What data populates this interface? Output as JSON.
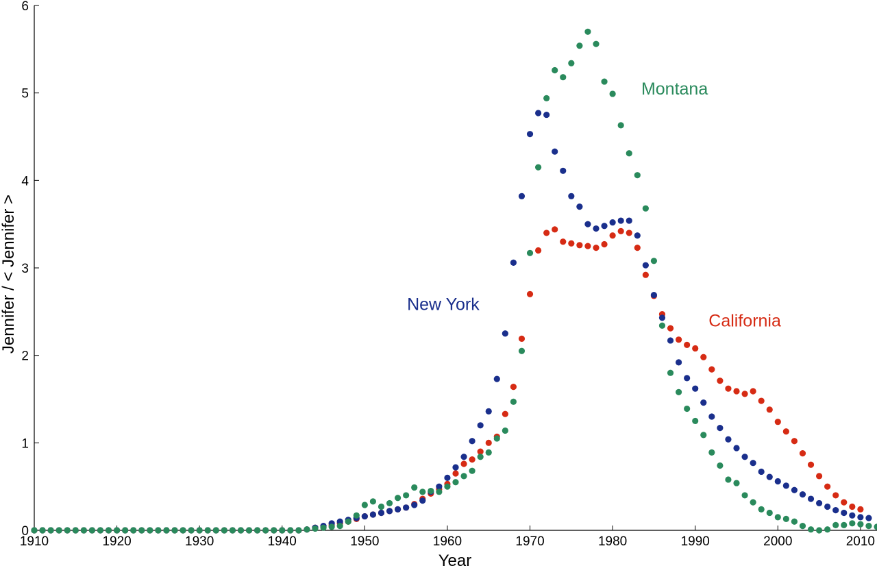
{
  "chart_data": {
    "type": "scatter",
    "title": "",
    "xlabel": "Year",
    "ylabel": "Jennifer / < Jennifer >",
    "xlim": [
      1910,
      2012
    ],
    "ylim": [
      0,
      6
    ],
    "xticks": [
      1910,
      1920,
      1930,
      1940,
      1950,
      1960,
      1970,
      1980,
      1990,
      2000,
      2010
    ],
    "xtick_labels": [
      "1910",
      "1920",
      "1930",
      "1940",
      "1950",
      "1960",
      "1970",
      "1980",
      "1990",
      "2000",
      "2010"
    ],
    "yticks": [
      0,
      1,
      2,
      3,
      4,
      5,
      6
    ],
    "ytick_labels": [
      "0",
      "1",
      "2",
      "3",
      "4",
      "5",
      "6"
    ],
    "grid": false,
    "legend": "none (series labeled inline)",
    "series": [
      {
        "name": "California",
        "color": "#d62b14",
        "x_start": 1910,
        "values": [
          0,
          0,
          0,
          0,
          0,
          0,
          0,
          0,
          0,
          0,
          0,
          0,
          0,
          0,
          0,
          0,
          0,
          0,
          0,
          0,
          0,
          0,
          0,
          0,
          0,
          0,
          0,
          0,
          0,
          0,
          0,
          0,
          0,
          0.01,
          0.03,
          0.04,
          0.06,
          0.08,
          0.1,
          0.13,
          0.16,
          0.18,
          0.2,
          0.22,
          0.24,
          0.26,
          0.3,
          0.36,
          0.42,
          0.47,
          0.53,
          0.65,
          0.76,
          0.81,
          0.9,
          1.0,
          1.07,
          1.33,
          1.64,
          2.19,
          2.7,
          3.2,
          3.4,
          3.44,
          3.3,
          3.28,
          3.26,
          3.25,
          3.23,
          3.27,
          3.37,
          3.42,
          3.4,
          3.23,
          2.92,
          2.68,
          2.47,
          2.31,
          2.18,
          2.12,
          2.08,
          1.98,
          1.84,
          1.71,
          1.62,
          1.59,
          1.56,
          1.59,
          1.48,
          1.38,
          1.24,
          1.13,
          1.02,
          0.88,
          0.75,
          0.62,
          0.5,
          0.4,
          0.32,
          0.27,
          0.24
        ]
      },
      {
        "name": "New York",
        "color": "#1a2f8c",
        "x_start": 1910,
        "values": [
          0,
          0,
          0,
          0,
          0,
          0,
          0,
          0,
          0,
          0,
          0,
          0,
          0,
          0,
          0,
          0,
          0,
          0,
          0,
          0,
          0,
          0,
          0,
          0,
          0,
          0,
          0,
          0,
          0,
          0,
          0,
          0,
          0,
          0.01,
          0.03,
          0.05,
          0.08,
          0.1,
          0.12,
          0.14,
          0.16,
          0.18,
          0.2,
          0.22,
          0.24,
          0.26,
          0.29,
          0.34,
          0.44,
          0.5,
          0.6,
          0.72,
          0.84,
          1.02,
          1.2,
          1.36,
          1.73,
          2.25,
          3.06,
          3.82,
          4.53,
          4.77,
          4.75,
          4.33,
          4.11,
          3.82,
          3.7,
          3.5,
          3.45,
          3.48,
          3.52,
          3.54,
          3.54,
          3.37,
          3.03,
          2.69,
          2.43,
          2.17,
          1.92,
          1.74,
          1.62,
          1.46,
          1.3,
          1.17,
          1.04,
          0.94,
          0.84,
          0.77,
          0.67,
          0.61,
          0.56,
          0.51,
          0.46,
          0.41,
          0.36,
          0.31,
          0.27,
          0.23,
          0.2,
          0.17,
          0.15,
          0.14
        ]
      },
      {
        "name": "Montana",
        "color": "#2a8a5c",
        "x_start": 1910,
        "values": [
          0,
          0,
          0,
          0,
          0,
          0,
          0,
          0,
          0,
          0,
          0,
          0,
          0,
          0,
          0,
          0,
          0,
          0,
          0,
          0,
          0,
          0,
          0,
          0,
          0,
          0,
          0,
          0,
          0,
          0,
          0,
          0,
          0,
          0.01,
          0.02,
          0.03,
          0.04,
          0.05,
          0.1,
          0.17,
          0.29,
          0.33,
          0.27,
          0.31,
          0.37,
          0.4,
          0.49,
          0.44,
          0.45,
          0.44,
          0.5,
          0.55,
          0.62,
          0.68,
          0.84,
          0.89,
          1.05,
          1.14,
          1.47,
          2.05,
          3.17,
          4.15,
          4.94,
          5.26,
          5.18,
          5.34,
          5.54,
          5.7,
          5.56,
          5.13,
          4.99,
          4.63,
          4.31,
          4.06,
          3.68,
          3.08,
          2.34,
          1.8,
          1.58,
          1.39,
          1.25,
          1.09,
          0.89,
          0.74,
          0.58,
          0.54,
          0.4,
          0.32,
          0.24,
          0.2,
          0.15,
          0.13,
          0.1,
          0.05,
          0.01,
          0,
          0.01,
          0.06,
          0.06,
          0.08,
          0.07,
          0.05,
          0.04
        ]
      }
    ],
    "annotations": [
      {
        "text": "Montana",
        "series": "Montana",
        "x": 1987.5,
        "y": 4.98
      },
      {
        "text": "New York",
        "series": "New York",
        "x": 1959.5,
        "y": 2.52
      },
      {
        "text": "California",
        "series": "California",
        "x": 1996.0,
        "y": 2.33
      }
    ]
  }
}
